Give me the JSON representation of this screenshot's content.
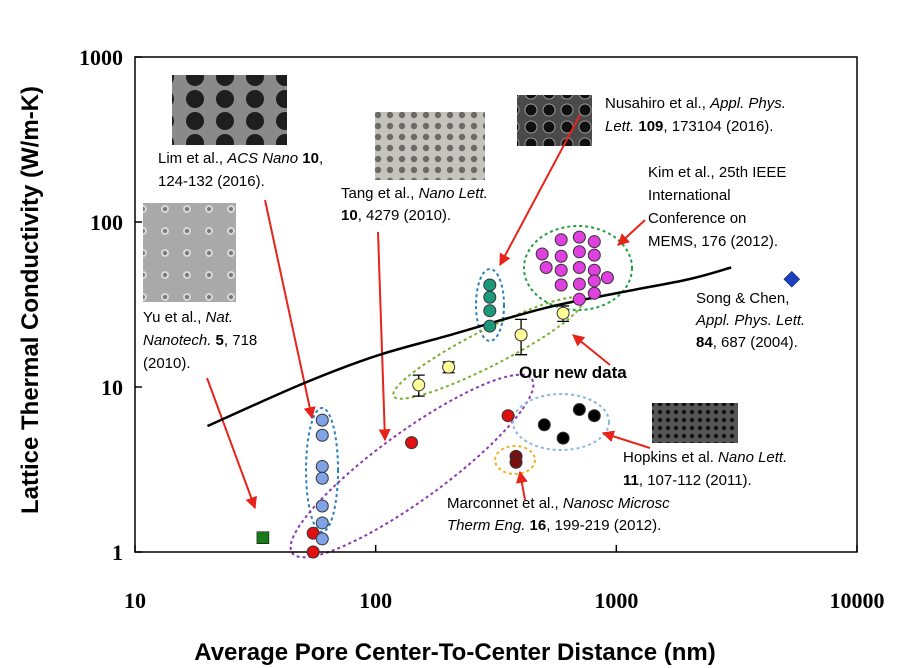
{
  "chart_data": {
    "type": "scatter",
    "xlabel": "Average Pore Center-To-Center Distance (nm)",
    "ylabel": "Lattice Thermal Conductivity (W/m-K)",
    "xscale": "log",
    "yscale": "log",
    "xlim": [
      10,
      10000
    ],
    "ylim": [
      1,
      1000
    ],
    "xticks": [
      10,
      100,
      1000,
      10000
    ],
    "yticks": [
      1,
      10,
      100,
      1000
    ],
    "series": [
      {
        "marker": "line",
        "color": "#000000",
        "x": [
          20,
          50,
          100,
          200,
          500,
          1000,
          2000,
          3000
        ],
        "values": [
          5.8,
          10.5,
          15.4,
          20.5,
          30,
          37,
          45,
          53
        ]
      },
      {
        "marker": "square",
        "color": "#1a7a1a",
        "x": [
          34
        ],
        "values": [
          1.22
        ]
      },
      {
        "marker": "circle",
        "color": "#e01010",
        "x": [
          55,
          55,
          141,
          355
        ],
        "values": [
          1.0,
          1.3,
          4.6,
          6.7
        ]
      },
      {
        "marker": "circle",
        "color": "#7fa3e6",
        "x": [
          60,
          60,
          60,
          60,
          60,
          60,
          60
        ],
        "values": [
          6.3,
          5.1,
          3.3,
          2.8,
          1.9,
          1.5,
          1.2
        ]
      },
      {
        "marker": "circle",
        "color": "#7a0f0f",
        "x": [
          383,
          383
        ],
        "values": [
          3.8,
          3.5
        ]
      },
      {
        "marker": "circle",
        "color": "#000000",
        "x": [
          502,
          601,
          702,
          810
        ],
        "values": [
          5.9,
          4.9,
          7.3,
          6.7
        ]
      },
      {
        "marker": "circle",
        "color": "#1a9a7a",
        "x": [
          298,
          298,
          298,
          298
        ],
        "values": [
          41.5,
          35,
          29,
          23.4
        ]
      },
      {
        "marker": "circle",
        "color": "#ffff99",
        "x": [
          151,
          201,
          402,
          601
        ],
        "values": [
          10.3,
          13.2,
          20.7,
          28
        ],
        "errors": [
          1.5,
          1,
          5,
          3
        ]
      },
      {
        "marker": "circle",
        "color": "#e040e0",
        "x": [
          492,
          590,
          702,
          810,
          590,
          702,
          810,
          511,
          590,
          702,
          810,
          918,
          590,
          702,
          810,
          702,
          810
        ],
        "values": [
          64,
          78,
          81,
          76,
          62,
          66,
          63,
          53,
          51,
          53,
          51,
          46,
          41.5,
          42,
          44,
          34,
          37
        ]
      },
      {
        "marker": "diamond",
        "color": "#1a3fbf",
        "x": [
          5360
        ],
        "values": [
          45
        ]
      }
    ],
    "annotations": [
      {
        "lines": [
          [
            {
              "text": "Lim et al., "
            },
            {
              "text": "ACS Nano",
              "style": "italic"
            },
            {
              "text": " 10",
              "style": "bold"
            },
            {
              "text": ","
            }
          ],
          [
            {
              "text": "124-132 (2016)."
            }
          ]
        ]
      },
      {
        "lines": [
          [
            {
              "text": "Tang et al., "
            },
            {
              "text": "Nano Lett.",
              "style": "italic"
            }
          ],
          [
            {
              "text": "10",
              "style": "bold"
            },
            {
              "text": ", 4279 (2010)."
            }
          ]
        ]
      },
      {
        "lines": [
          [
            {
              "text": "Nusahiro et al., "
            },
            {
              "text": "Appl. Phys.",
              "style": "italic"
            }
          ],
          [
            {
              "text": "Lett. ",
              "style": "italic"
            },
            {
              "text": "109",
              "style": "bold"
            },
            {
              "text": ", 173104 (2016)."
            }
          ]
        ]
      },
      {
        "lines": [
          [
            {
              "text": "Kim et al., 25th IEEE"
            }
          ],
          [
            {
              "text": "International"
            }
          ],
          [
            {
              "text": "Conference on"
            }
          ],
          [
            {
              "text": "MEMS, 176 (2012)."
            }
          ]
        ]
      },
      {
        "lines": [
          [
            {
              "text": "Song & Chen,"
            }
          ],
          [
            {
              "text": "Appl. Phys. Lett.",
              "style": "italic"
            }
          ],
          [
            {
              "text": "84",
              "style": "bold"
            },
            {
              "text": ", 687 (2004)."
            }
          ]
        ]
      },
      {
        "lines": [
          [
            {
              "text": "Yu et al., "
            },
            {
              "text": "Nat.",
              "style": "italic"
            }
          ],
          [
            {
              "text": "Nanotech. ",
              "style": "italic"
            },
            {
              "text": "5",
              "style": "bold"
            },
            {
              "text": ", 718"
            }
          ],
          [
            {
              "text": "(2010)."
            }
          ]
        ]
      },
      {
        "lines": [
          [
            {
              "text": "Our new data",
              "style": "bold"
            }
          ]
        ]
      },
      {
        "lines": [
          [
            {
              "text": "Hopkins et al. "
            },
            {
              "text": "Nano Lett.",
              "style": "italic"
            }
          ],
          [
            {
              "text": "11",
              "style": "bold"
            },
            {
              "text": ", 107-112 (2011)."
            }
          ]
        ]
      },
      {
        "lines": [
          [
            {
              "text": "Marconnet et al., "
            },
            {
              "text": "Nanosc Microsc",
              "style": "italic"
            }
          ],
          [
            {
              "text": "Therm Eng. ",
              "style": "italic"
            },
            {
              "text": "16",
              "style": "bold"
            },
            {
              "text": ", 199-219 (2012)."
            }
          ]
        ]
      }
    ]
  }
}
